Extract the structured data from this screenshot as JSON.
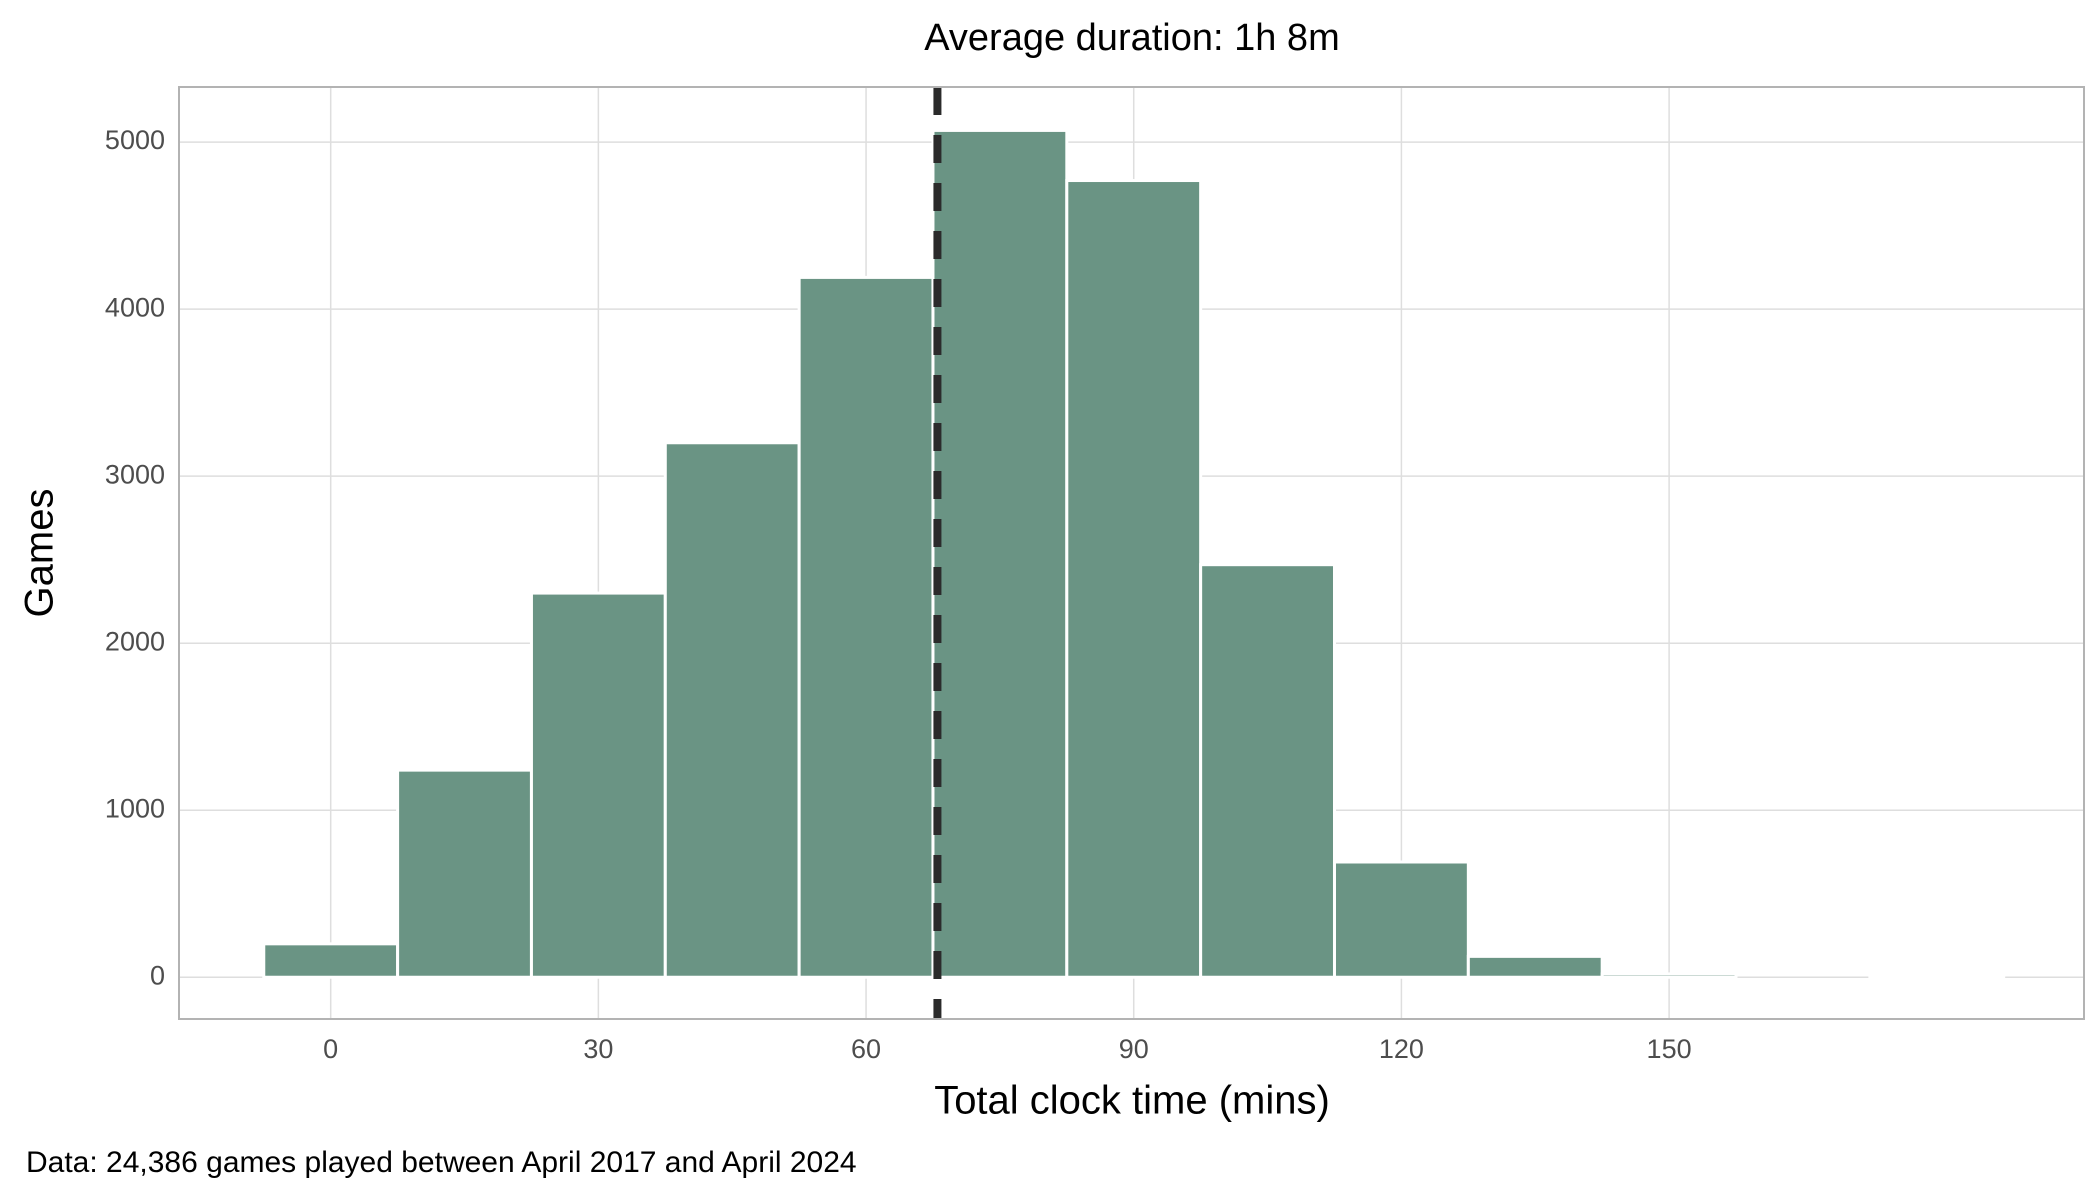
{
  "chart_data": {
    "type": "histogram",
    "title": "Average duration:  1h  8m",
    "x_label": "Total clock time (mins)",
    "y_label": "Games",
    "caption": "Data: 24,386 games played between April 2017 and April 2024",
    "bins": [
      -7.5,
      7.5,
      22.5,
      37.5,
      52.5,
      67.5,
      82.5,
      97.5,
      112.5,
      127.5,
      142.5,
      157.5,
      172.5,
      187.5
    ],
    "values": [
      200,
      1240,
      2300,
      3200,
      4190,
      5070,
      4770,
      2470,
      690,
      125,
      20,
      0,
      5
    ],
    "color": "#6a9484",
    "mean_line": 68,
    "xlim": [
      -17,
      196.5
    ],
    "ylim": [
      -250,
      5330
    ],
    "xticks": [
      0,
      30,
      60,
      90,
      120,
      150
    ],
    "yticks": [
      0,
      1000,
      2000,
      3000,
      4000,
      5000
    ],
    "grid": true
  }
}
